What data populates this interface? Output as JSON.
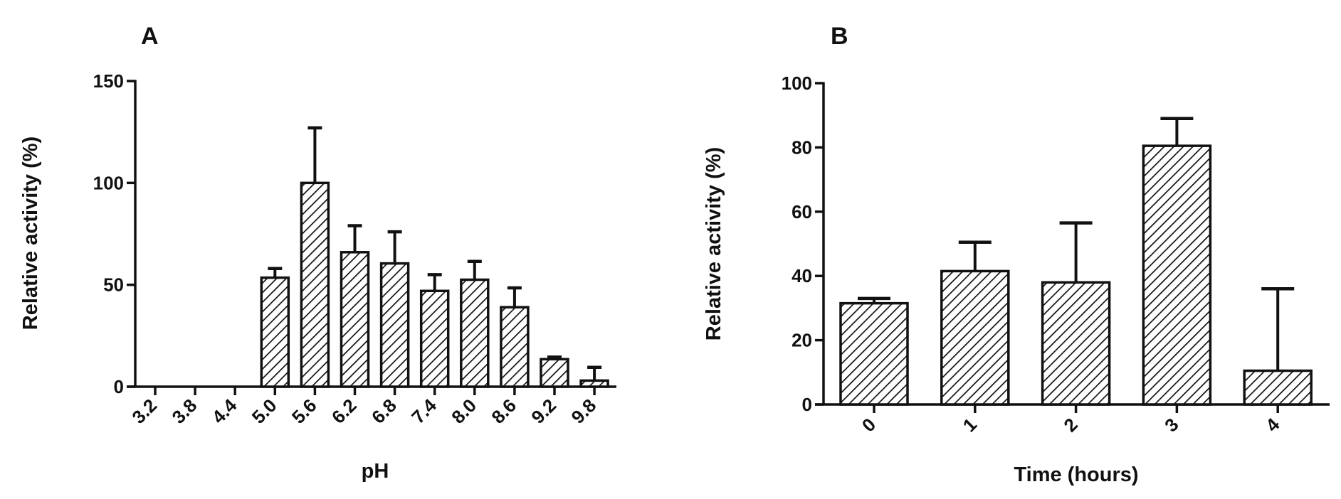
{
  "figure": {
    "panels": [
      {
        "letter": "A"
      },
      {
        "letter": "B"
      }
    ]
  },
  "style": {
    "ink": "#111111",
    "background": "#ffffff",
    "bar_pattern": "diagonal-hatch"
  },
  "chart_data": [
    {
      "panel": "A",
      "type": "bar",
      "title": "A",
      "xlabel": "pH",
      "ylabel": "Relative activity (%)",
      "ylim": [
        0,
        150
      ],
      "yticks": [
        0,
        50,
        100,
        150
      ],
      "grid": false,
      "legend": null,
      "categories": [
        "3.2",
        "3.8",
        "4.4",
        "5.0",
        "5.6",
        "6.2",
        "6.8",
        "7.4",
        "8.0",
        "8.6",
        "9.2",
        "9.8"
      ],
      "values": [
        0,
        0,
        0,
        53.5,
        100,
        66,
        60.5,
        47,
        52.5,
        39,
        13.5,
        3
      ],
      "error_upper": [
        0,
        0,
        0,
        4.5,
        27,
        13,
        15.5,
        8,
        9,
        9.5,
        1,
        6.5
      ],
      "bar_fill": "diagonal-hatch",
      "xtick_rotation": -45
    },
    {
      "panel": "B",
      "type": "bar",
      "title": "B",
      "xlabel": "Time (hours)",
      "ylabel": "Relative activity (%)",
      "ylim": [
        0,
        100
      ],
      "yticks": [
        0,
        20,
        40,
        60,
        80,
        100
      ],
      "grid": false,
      "legend": null,
      "categories": [
        "0",
        "1",
        "2",
        "3",
        "4"
      ],
      "values": [
        31.5,
        41.5,
        38,
        80.5,
        10.5
      ],
      "error_upper": [
        1.5,
        9,
        18.5,
        8.5,
        25.5
      ],
      "bar_fill": "diagonal-hatch",
      "xtick_rotation": -45
    }
  ]
}
